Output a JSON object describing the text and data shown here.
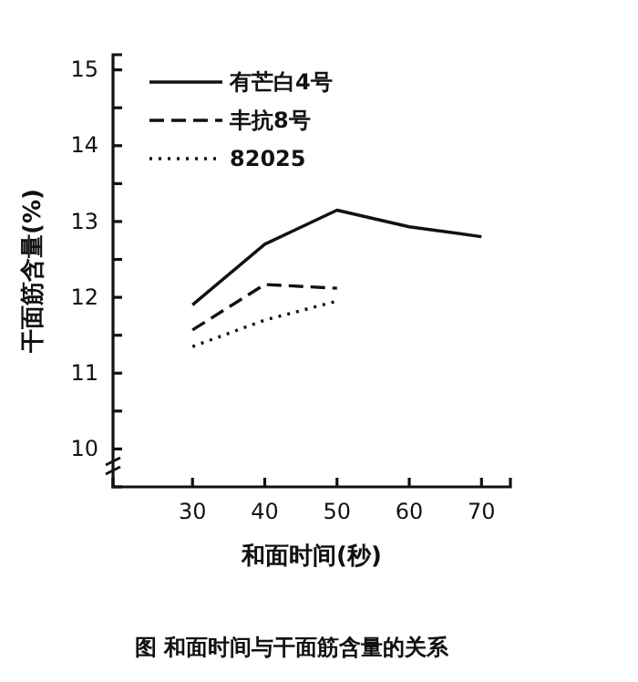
{
  "chart_data": {
    "type": "line",
    "xlabel": "和面时间(秒)",
    "ylabel": "干面筋含量(%)",
    "annotations": [
      "图 和面时间与干面筋含量的关系"
    ],
    "series": [
      {
        "name": "有芒白4号",
        "color": "#111111",
        "line_style": "solid",
        "x": [
          30,
          40,
          50,
          60,
          70
        ],
        "values": [
          11.9,
          12.7,
          13.15,
          12.93,
          12.8
        ]
      },
      {
        "name": "丰抗8号",
        "color": "#111111",
        "line_style": "dashed",
        "x": [
          30,
          40,
          50
        ],
        "values": [
          11.57,
          12.17,
          12.12
        ]
      },
      {
        "name": "82025",
        "color": "#111111",
        "line_style": "dotted",
        "x": [
          30,
          40,
          50
        ],
        "values": [
          11.35,
          11.7,
          11.95
        ]
      }
    ],
    "xlim": [
      19,
      74
    ],
    "xticks": [
      30,
      40,
      50,
      60,
      70
    ],
    "ylim": [
      9.5,
      15.2
    ],
    "yticks": [
      10,
      {
        "value": 10.5,
        "label": null
      },
      11,
      {
        "value": 11.5,
        "label": null
      },
      12,
      {
        "value": 12.5,
        "label": null
      },
      13,
      {
        "value": 13.5,
        "label": null
      },
      14,
      {
        "value": 14.5,
        "label": null
      },
      15
    ],
    "legend": "top left",
    "grid": false,
    "marker": "none"
  }
}
